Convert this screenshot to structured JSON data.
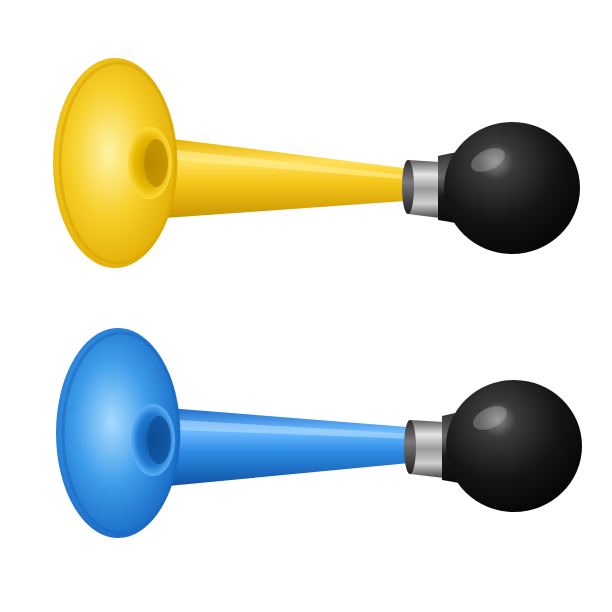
{
  "image": {
    "background_color": "#ffffff",
    "objects": [
      {
        "name": "horn-yellow",
        "kind": "bulb-horn",
        "horn_color": "#f5c518",
        "horn_shade": "#d9a300",
        "horn_light": "#ffe36b",
        "bulb_color": "#1a1a1a"
      },
      {
        "name": "horn-blue",
        "kind": "bulb-horn",
        "horn_color": "#2a8fe0",
        "horn_shade": "#1463b8",
        "horn_light": "#7cc3ff",
        "bulb_color": "#1a1a1a"
      }
    ]
  }
}
